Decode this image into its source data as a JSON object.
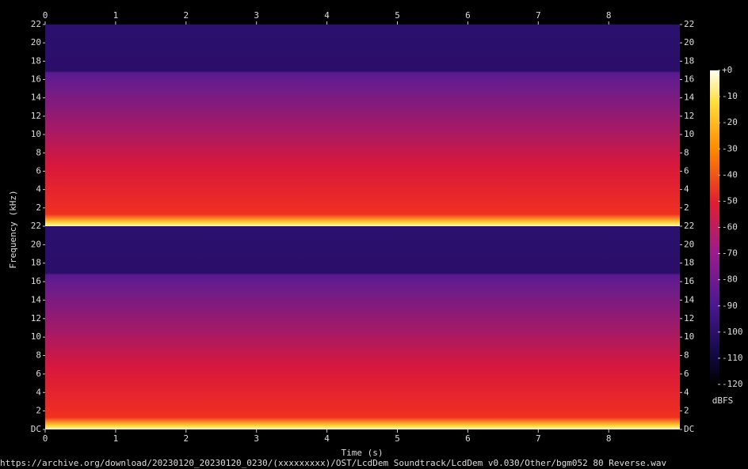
{
  "chart_data": {
    "type": "spectrogram",
    "xlabel": "Time (s)",
    "ylabel": "Frequency (kHz)",
    "xlim": [
      0,
      9.01
    ],
    "xticks": [
      0,
      1,
      2,
      3,
      4,
      5,
      6,
      7,
      8
    ],
    "channels": [
      {
        "ylim": [
          0,
          22
        ],
        "yticks": [
          2,
          4,
          6,
          8,
          10,
          12,
          14,
          16,
          18,
          20,
          22
        ]
      },
      {
        "ylim": [
          0,
          22
        ],
        "yticks": [
          {
            "value": 0,
            "label": "DC"
          },
          2,
          4,
          6,
          8,
          10,
          12,
          14,
          16,
          18,
          20,
          22
        ]
      }
    ],
    "colorbar": {
      "label": "dBFS",
      "clim": [
        -120,
        0
      ],
      "ticks": [
        {
          "value": 0,
          "label": "+0"
        },
        -10,
        -20,
        -30,
        -40,
        -50,
        -60,
        -70,
        -80,
        -90,
        -100,
        -110,
        -120
      ]
    },
    "caption": "https://archive.org/download/20230120_20230120_0230/(xxxxxxxxx)/OST/LcdDem Soundtrack/LcdDem v0.030/Other/bgm052 80 Reverse.wav"
  }
}
